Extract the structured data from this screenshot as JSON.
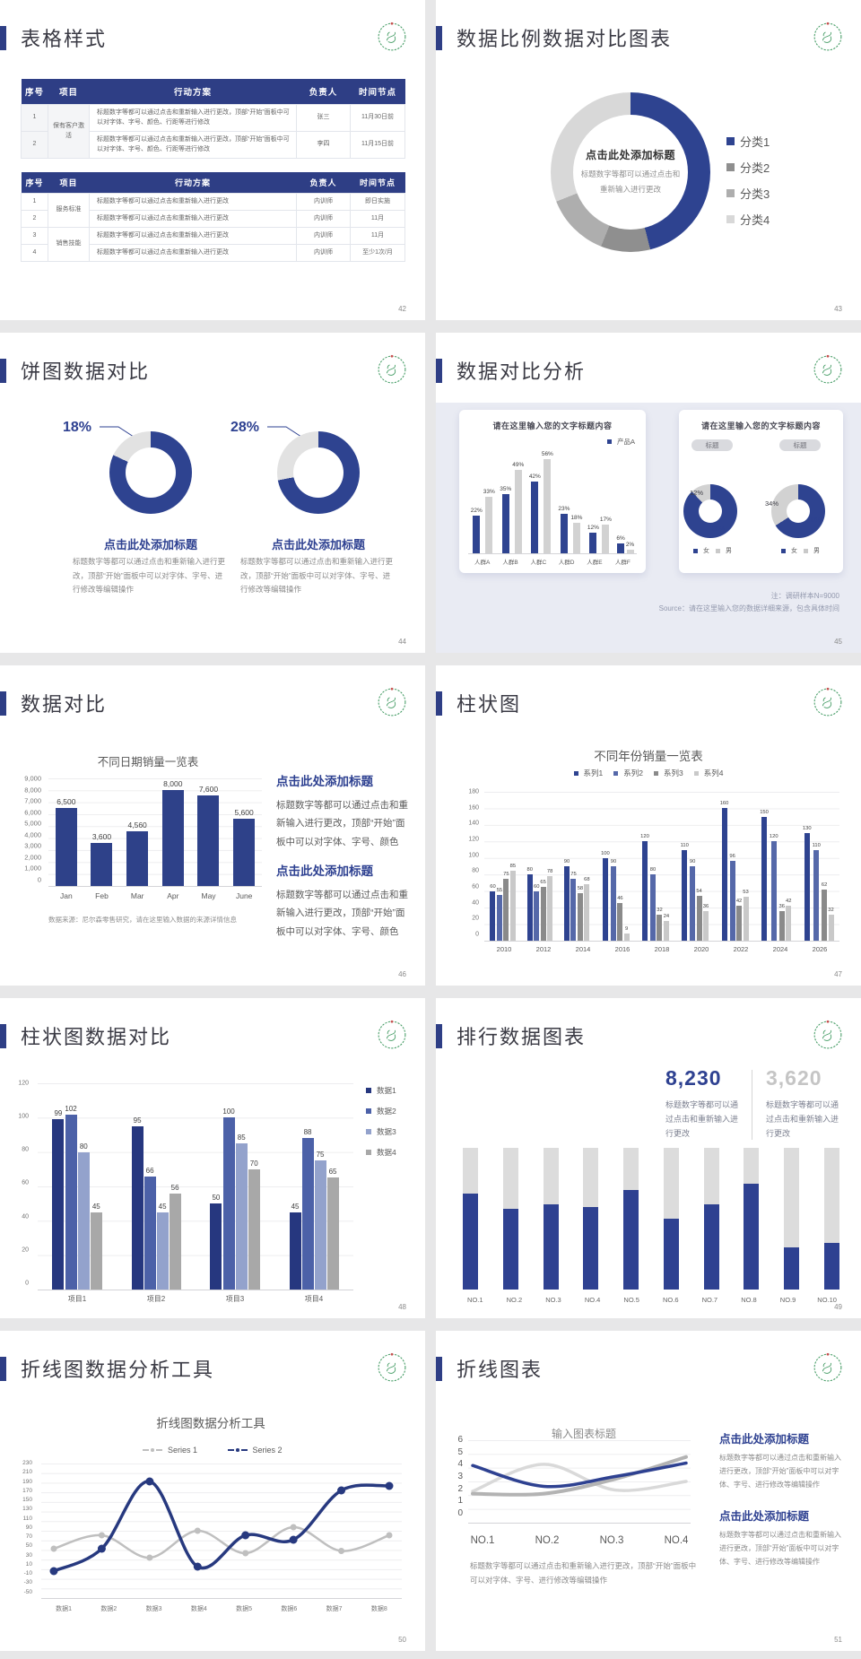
{
  "accent_color": "#2e4191",
  "page_bg": "#e7e7e8",
  "slides": {
    "s42": {
      "title": "表格样式",
      "num": "42",
      "t1": {
        "h": [
          "序号",
          "项目",
          "行动方案",
          "负责人",
          "时间节点"
        ],
        "r1": {
          "no": "1",
          "proj": "保有客户激活",
          "act": "标题数字等都可以通过点击和重新输入进行更改，顶部“开始”面板中可以对字体、字号、颜色、行距等进行修改",
          "own": "张三",
          "time": "11月30日前"
        },
        "r2": {
          "no": "2",
          "act": "标题数字等都可以通过点击和重新输入进行更改，顶部“开始”面板中可以对字体、字号、颜色、行距等进行修改",
          "own": "李四",
          "time": "11月15日前"
        }
      },
      "t2": {
        "h": [
          "序号",
          "项目",
          "行动方案",
          "负责人",
          "时间节点"
        ],
        "r1": {
          "no": "1",
          "proj": "服务标准",
          "act": "标题数字等都可以通过点击和重新输入进行更改",
          "own": "内训师",
          "time": "即日实施"
        },
        "r2": {
          "no": "2",
          "act": "标题数字等都可以通过点击和重新输入进行更改",
          "own": "内训师",
          "time": "11月"
        },
        "r3": {
          "no": "3",
          "proj": "销售技能",
          "act": "标题数字等都可以通过点击和重新输入进行更改",
          "own": "内训师",
          "time": "11月"
        },
        "r4": {
          "no": "4",
          "act": "标题数字等都可以通过点击和重新输入进行更改",
          "own": "内训师",
          "time": "至少1次/月"
        }
      }
    },
    "s43": {
      "title": "数据比例数据对比图表",
      "num": "43",
      "center_title": "点击此处添加标题",
      "center_sub": "标题数字等都可以通过点击和重新输入进行更改"
    },
    "s44": {
      "title": "饼图数据对比",
      "num": "44",
      "pct1": "18%",
      "pct2": "28%",
      "h": "点击此处添加标题",
      "body": "标题数字等都可以通过点击和重新输入进行更改，顶部“开始”面板中可以对字体、字号、进行修改等编辑操作"
    },
    "s45": {
      "title": "数据对比分析",
      "num": "45",
      "card_title": "请在这里输入您的文字标题内容",
      "badge": "标题",
      "pct_a": "12%",
      "pct_b": "34%",
      "val_a": "88%",
      "val_b": "66%",
      "legend": [
        {
          "label": "女",
          "color": "#2e4390"
        },
        {
          "label": "男",
          "color": "#c9c9c9"
        }
      ],
      "note1": "注：调研样本N=9000",
      "note2": "Source：请在这里输入您的数据详细来源，包含具体时间"
    },
    "s46": {
      "title": "数据对比",
      "num": "46",
      "h": "点击此处添加标题",
      "body": "标题数字等都可以通过点击和重新输入进行更改，顶部“开始”面板中可以对字体、字号、颜色",
      "note": "数据来源：尼尔森零售研究，请在这里输入数据的来源详情信息"
    },
    "s47": {
      "title": "柱状图",
      "num": "47"
    },
    "s48": {
      "title": "柱状图数据对比",
      "num": "48"
    },
    "s49": {
      "title": "排行数据图表",
      "num": "49",
      "stat1": "8,230",
      "stat2": "3,620",
      "stat_body": "标题数字等都可以通过点击和重新输入进行更改"
    },
    "s50": {
      "title": "折线图数据分析工具",
      "num": "50"
    },
    "s51": {
      "title": "折线图表",
      "num": "51",
      "h": "点击此处添加标题",
      "body": "标题数字等都可以通过点击和重新输入进行更改，顶部“开始”面板中可以对字体、字号、进行修改等编辑操作",
      "caption": "标题数字等都可以通过点击和重新输入进行更改，顶部“开始”面板中可以对字体、字号、进行修改等编辑操作"
    }
  },
  "chart_data": [
    {
      "type": "pie",
      "name": "donut-slide43",
      "segments": [
        {
          "label": "分类1",
          "value": 46,
          "color": "#2e4390"
        },
        {
          "label": "分类2",
          "value": 10,
          "color": "#8f8f8f"
        },
        {
          "label": "分类3",
          "value": 13,
          "color": "#aeaeae"
        },
        {
          "label": "分类4",
          "value": 31,
          "color": "#d8d8d8"
        }
      ]
    },
    {
      "type": "pie",
      "name": "donut-slide44-left",
      "callout": "18%",
      "segments": [
        {
          "label": "主体",
          "value": 82,
          "color": "#2e4390"
        },
        {
          "label": "18%",
          "value": 18,
          "color": "#e2e2e2"
        }
      ]
    },
    {
      "type": "pie",
      "name": "donut-slide44-right",
      "callout": "28%",
      "segments": [
        {
          "label": "主体",
          "value": 72,
          "color": "#2e4390"
        },
        {
          "label": "28%",
          "value": 28,
          "color": "#e2e2e2"
        }
      ]
    },
    {
      "type": "bar",
      "name": "bar-slide45",
      "title": "请在这里输入您的文字标题内容",
      "ymax": 60,
      "categories": [
        "人群A",
        "人群B",
        "人群C",
        "人群D",
        "人群E",
        "人群F"
      ],
      "series": [
        {
          "name": "产品A",
          "color": "#2e4390",
          "values": [
            22,
            35,
            42,
            23,
            12,
            6
          ],
          "labels": [
            "22%",
            "35%",
            "42%",
            "23%",
            "12%",
            "6%"
          ]
        },
        {
          "name": "",
          "color": "#d2d2d2",
          "values": [
            33,
            49,
            56,
            18,
            17,
            2
          ],
          "labels": [
            "33%",
            "49%",
            "56%",
            "18%",
            "17%",
            "2%"
          ]
        }
      ]
    },
    {
      "type": "pie",
      "name": "donut-slide45-left",
      "label": "12%",
      "value_label": "88%",
      "segments": [
        {
          "label": "女",
          "value": 88,
          "color": "#2e4390"
        },
        {
          "label": "男",
          "value": 12,
          "color": "#d2d2d2"
        }
      ]
    },
    {
      "type": "pie",
      "name": "donut-slide45-right",
      "label": "34%",
      "value_label": "66%",
      "segments": [
        {
          "label": "女",
          "value": 66,
          "color": "#2e4390"
        },
        {
          "label": "男",
          "value": 34,
          "color": "#d2d2d2"
        }
      ]
    },
    {
      "type": "bar",
      "name": "bar-slide46",
      "title": "不同日期销量一览表",
      "ymax": 9000,
      "yticks": [
        "9,000",
        "8,000",
        "7,000",
        "6,000",
        "5,000",
        "4,000",
        "3,000",
        "2,000",
        "1,000",
        "0"
      ],
      "categories": [
        "Jan",
        "Feb",
        "Mar",
        "Apr",
        "May",
        "June"
      ],
      "series": [
        {
          "name": "销量",
          "color": "#2e4189",
          "values": [
            6500,
            3600,
            4560,
            8000,
            7600,
            5600
          ],
          "labels": [
            "6,500",
            "3,600",
            "4,560",
            "8,000",
            "7,600",
            "5,600"
          ]
        }
      ]
    },
    {
      "type": "bar",
      "name": "bar-slide47",
      "title": "不同年份销量一览表",
      "ymax": 180,
      "yticks": [
        "180",
        "160",
        "140",
        "120",
        "100",
        "80",
        "60",
        "40",
        "20",
        "0"
      ],
      "categories": [
        "2010",
        "2012",
        "2014",
        "2016",
        "2018",
        "2020",
        "2022",
        "2024",
        "2026"
      ],
      "series": [
        {
          "name": "系列1",
          "color": "#2e4390",
          "values": [
            60,
            80,
            90,
            100,
            120,
            110,
            160,
            150,
            130
          ]
        },
        {
          "name": "系列2",
          "color": "#5568a9",
          "values": [
            55,
            60,
            75,
            90,
            80,
            90,
            96,
            120,
            110
          ]
        },
        {
          "name": "系列3",
          "color": "#8a8a8a",
          "values": [
            75,
            65,
            58,
            46,
            32,
            54,
            42,
            36,
            62
          ]
        },
        {
          "name": "系列4",
          "color": "#c9c9c9",
          "values": [
            85,
            78,
            68,
            9,
            24,
            36,
            53,
            42,
            32
          ]
        }
      ]
    },
    {
      "type": "bar",
      "name": "bar-slide48",
      "ymax": 120,
      "yticks": [
        "120",
        "100",
        "80",
        "60",
        "40",
        "20",
        "0"
      ],
      "categories": [
        "项目1",
        "项目2",
        "项目3",
        "项目4"
      ],
      "series": [
        {
          "name": "数据1",
          "color": "#26377f",
          "values": [
            99,
            95,
            50,
            45
          ]
        },
        {
          "name": "数据2",
          "color": "#4c61a8",
          "values": [
            102,
            66,
            100,
            88
          ]
        },
        {
          "name": "数据3",
          "color": "#93a2cc",
          "values": [
            80,
            45,
            85,
            75
          ]
        },
        {
          "name": "数据4",
          "color": "#a8a8a8",
          "values": [
            45,
            56,
            70,
            65
          ]
        }
      ]
    },
    {
      "type": "bar",
      "name": "rank-slide49",
      "ymax": 100,
      "track_color": "#dcdcdc",
      "fill_color": "#2e4191",
      "categories": [
        "NO.1",
        "NO.2",
        "NO.3",
        "NO.4",
        "NO.5",
        "NO.6",
        "NO.7",
        "NO.8",
        "NO.9",
        "NO.10"
      ],
      "values": [
        68,
        57,
        60,
        58,
        70,
        50,
        60,
        75,
        30,
        33
      ]
    },
    {
      "type": "line",
      "name": "line-slide50",
      "title": "折线图数据分析工具",
      "ymin": -50,
      "ymax": 230,
      "yticks": [
        "230",
        "210",
        "190",
        "170",
        "150",
        "130",
        "110",
        "90",
        "70",
        "50",
        "30",
        "10",
        "-10",
        "-30",
        "-50"
      ],
      "categories": [
        "数据1",
        "数据2",
        "数据3",
        "数据4",
        "数据5",
        "数据6",
        "数据7",
        "数据8"
      ],
      "series": [
        {
          "name": "Series 1",
          "color": "#bfbfbf",
          "values": [
            50,
            80,
            30,
            90,
            40,
            98,
            45,
            80
          ]
        },
        {
          "name": "Series 2",
          "color": "#27397f",
          "values": [
            0,
            50,
            200,
            10,
            80,
            70,
            180,
            190
          ]
        }
      ]
    },
    {
      "type": "line",
      "name": "line-slide51",
      "title": "输入图表标题",
      "ymin": 0,
      "ymax": 6,
      "yticks": [
        "6",
        "5",
        "4",
        "3",
        "2",
        "1",
        "0"
      ],
      "categories": [
        "NO.1",
        "NO.2",
        "NO.3",
        "NO.4"
      ],
      "series": [
        {
          "name": "",
          "color": "#d9d9d9",
          "values": [
            2.2,
            4.4,
            2.3,
            3.0
          ]
        },
        {
          "name": "",
          "color": "#b3b3b3",
          "values": [
            2.0,
            2.0,
            3.2,
            5.0
          ]
        },
        {
          "name": "",
          "color": "#2e4191",
          "values": [
            4.3,
            2.6,
            3.4,
            4.5
          ]
        }
      ]
    }
  ]
}
